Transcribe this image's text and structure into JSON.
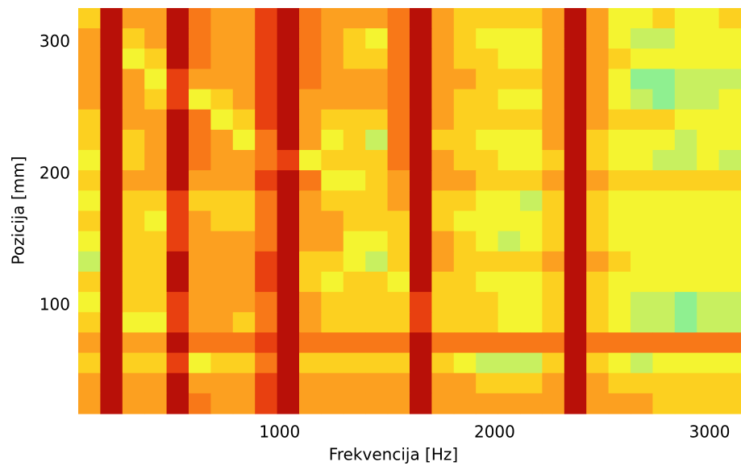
{
  "chart_data": {
    "type": "heatmap",
    "x_label": "Frekvencija [Hz]",
    "y_label": "Pozicija [mm]",
    "xlim": [
      63,
      3146
    ],
    "ylim": [
      18,
      326
    ],
    "xticks": [
      1000,
      2000,
      3000
    ],
    "yticks": [
      100,
      200,
      300
    ],
    "colorscale": [
      "#40e0c0",
      "#60e8a8",
      "#8ff090",
      "#c8f060",
      "#f4f430",
      "#fcd020",
      "#fca020",
      "#f87818",
      "#e84010",
      "#b81008"
    ],
    "z": [
      [
        5,
        9,
        6,
        6,
        9,
        7,
        6,
        6,
        8,
        9,
        7,
        6,
        6,
        6,
        7,
        9,
        6,
        5,
        5,
        5,
        5,
        6,
        9,
        6,
        4,
        4,
        5,
        4,
        4,
        5
      ],
      [
        6,
        9,
        5,
        6,
        9,
        7,
        6,
        6,
        8,
        9,
        7,
        6,
        5,
        4,
        7,
        9,
        6,
        5,
        4,
        4,
        4,
        6,
        9,
        6,
        4,
        3,
        3,
        4,
        4,
        4
      ],
      [
        6,
        9,
        4,
        5,
        9,
        7,
        6,
        6,
        8,
        9,
        7,
        6,
        5,
        5,
        7,
        9,
        6,
        5,
        5,
        4,
        4,
        6,
        9,
        6,
        5,
        4,
        4,
        4,
        4,
        4
      ],
      [
        6,
        9,
        6,
        4,
        8,
        6,
        6,
        6,
        8,
        9,
        7,
        6,
        6,
        6,
        7,
        9,
        6,
        6,
        5,
        5,
        5,
        6,
        9,
        6,
        4,
        2,
        2,
        3,
        3,
        3
      ],
      [
        6,
        9,
        6,
        5,
        8,
        4,
        5,
        6,
        8,
        9,
        6,
        6,
        6,
        6,
        7,
        9,
        6,
        5,
        5,
        4,
        4,
        6,
        9,
        6,
        4,
        3,
        2,
        3,
        3,
        4
      ],
      [
        5,
        9,
        6,
        6,
        9,
        7,
        4,
        5,
        8,
        9,
        6,
        5,
        5,
        5,
        7,
        9,
        6,
        5,
        5,
        5,
        5,
        6,
        9,
        6,
        5,
        5,
        5,
        4,
        4,
        4
      ],
      [
        5,
        9,
        5,
        6,
        9,
        7,
        6,
        4,
        7,
        9,
        6,
        4,
        5,
        3,
        7,
        9,
        5,
        5,
        4,
        4,
        4,
        6,
        9,
        5,
        4,
        4,
        4,
        3,
        4,
        4
      ],
      [
        4,
        9,
        5,
        6,
        9,
        7,
        6,
        6,
        7,
        8,
        4,
        5,
        5,
        5,
        7,
        9,
        6,
        5,
        5,
        4,
        4,
        5,
        9,
        5,
        4,
        4,
        3,
        3,
        4,
        3
      ],
      [
        5,
        9,
        6,
        6,
        9,
        6,
        6,
        6,
        8,
        9,
        7,
        4,
        4,
        5,
        6,
        9,
        6,
        6,
        5,
        5,
        5,
        6,
        9,
        6,
        5,
        5,
        5,
        5,
        5,
        5
      ],
      [
        4,
        9,
        5,
        5,
        8,
        5,
        5,
        5,
        7,
        9,
        6,
        5,
        5,
        5,
        6,
        9,
        5,
        5,
        4,
        4,
        3,
        5,
        9,
        5,
        4,
        4,
        4,
        4,
        4,
        4
      ],
      [
        5,
        9,
        5,
        4,
        8,
        6,
        5,
        5,
        7,
        9,
        6,
        6,
        5,
        5,
        5,
        9,
        5,
        4,
        4,
        4,
        4,
        5,
        9,
        5,
        4,
        4,
        4,
        4,
        4,
        4
      ],
      [
        4,
        9,
        5,
        5,
        8,
        6,
        6,
        6,
        7,
        9,
        6,
        6,
        4,
        4,
        5,
        9,
        6,
        5,
        4,
        3,
        4,
        5,
        9,
        5,
        4,
        4,
        4,
        4,
        4,
        4
      ],
      [
        3,
        9,
        5,
        5,
        9,
        6,
        6,
        6,
        8,
        9,
        5,
        5,
        4,
        3,
        5,
        9,
        6,
        5,
        5,
        5,
        5,
        6,
        9,
        6,
        5,
        4,
        4,
        4,
        4,
        4
      ],
      [
        5,
        9,
        5,
        5,
        9,
        6,
        6,
        6,
        8,
        9,
        5,
        4,
        5,
        5,
        4,
        9,
        5,
        5,
        4,
        4,
        4,
        5,
        9,
        5,
        4,
        4,
        4,
        4,
        4,
        4
      ],
      [
        4,
        9,
        5,
        5,
        8,
        6,
        6,
        6,
        7,
        9,
        6,
        5,
        5,
        5,
        5,
        8,
        5,
        5,
        5,
        4,
        4,
        5,
        9,
        5,
        4,
        3,
        3,
        2,
        3,
        3
      ],
      [
        5,
        9,
        4,
        4,
        8,
        6,
        6,
        5,
        7,
        9,
        6,
        5,
        5,
        5,
        5,
        8,
        5,
        5,
        5,
        4,
        4,
        5,
        9,
        5,
        4,
        3,
        3,
        2,
        3,
        3
      ],
      [
        6,
        9,
        6,
        6,
        9,
        7,
        7,
        7,
        8,
        9,
        7,
        7,
        7,
        7,
        7,
        9,
        7,
        7,
        7,
        7,
        7,
        7,
        9,
        7,
        7,
        7,
        7,
        7,
        7,
        7
      ],
      [
        5,
        9,
        5,
        5,
        8,
        4,
        5,
        5,
        7,
        9,
        5,
        5,
        5,
        5,
        5,
        9,
        5,
        4,
        3,
        3,
        3,
        5,
        9,
        5,
        4,
        3,
        4,
        4,
        4,
        4
      ],
      [
        6,
        9,
        6,
        6,
        9,
        6,
        6,
        6,
        8,
        9,
        6,
        6,
        6,
        6,
        6,
        9,
        6,
        6,
        5,
        5,
        5,
        6,
        9,
        6,
        5,
        5,
        5,
        5,
        5,
        5
      ],
      [
        6,
        9,
        6,
        6,
        9,
        7,
        6,
        6,
        8,
        9,
        6,
        6,
        6,
        6,
        6,
        9,
        6,
        6,
        6,
        6,
        6,
        6,
        9,
        6,
        6,
        6,
        5,
        5,
        5,
        5
      ]
    ]
  }
}
